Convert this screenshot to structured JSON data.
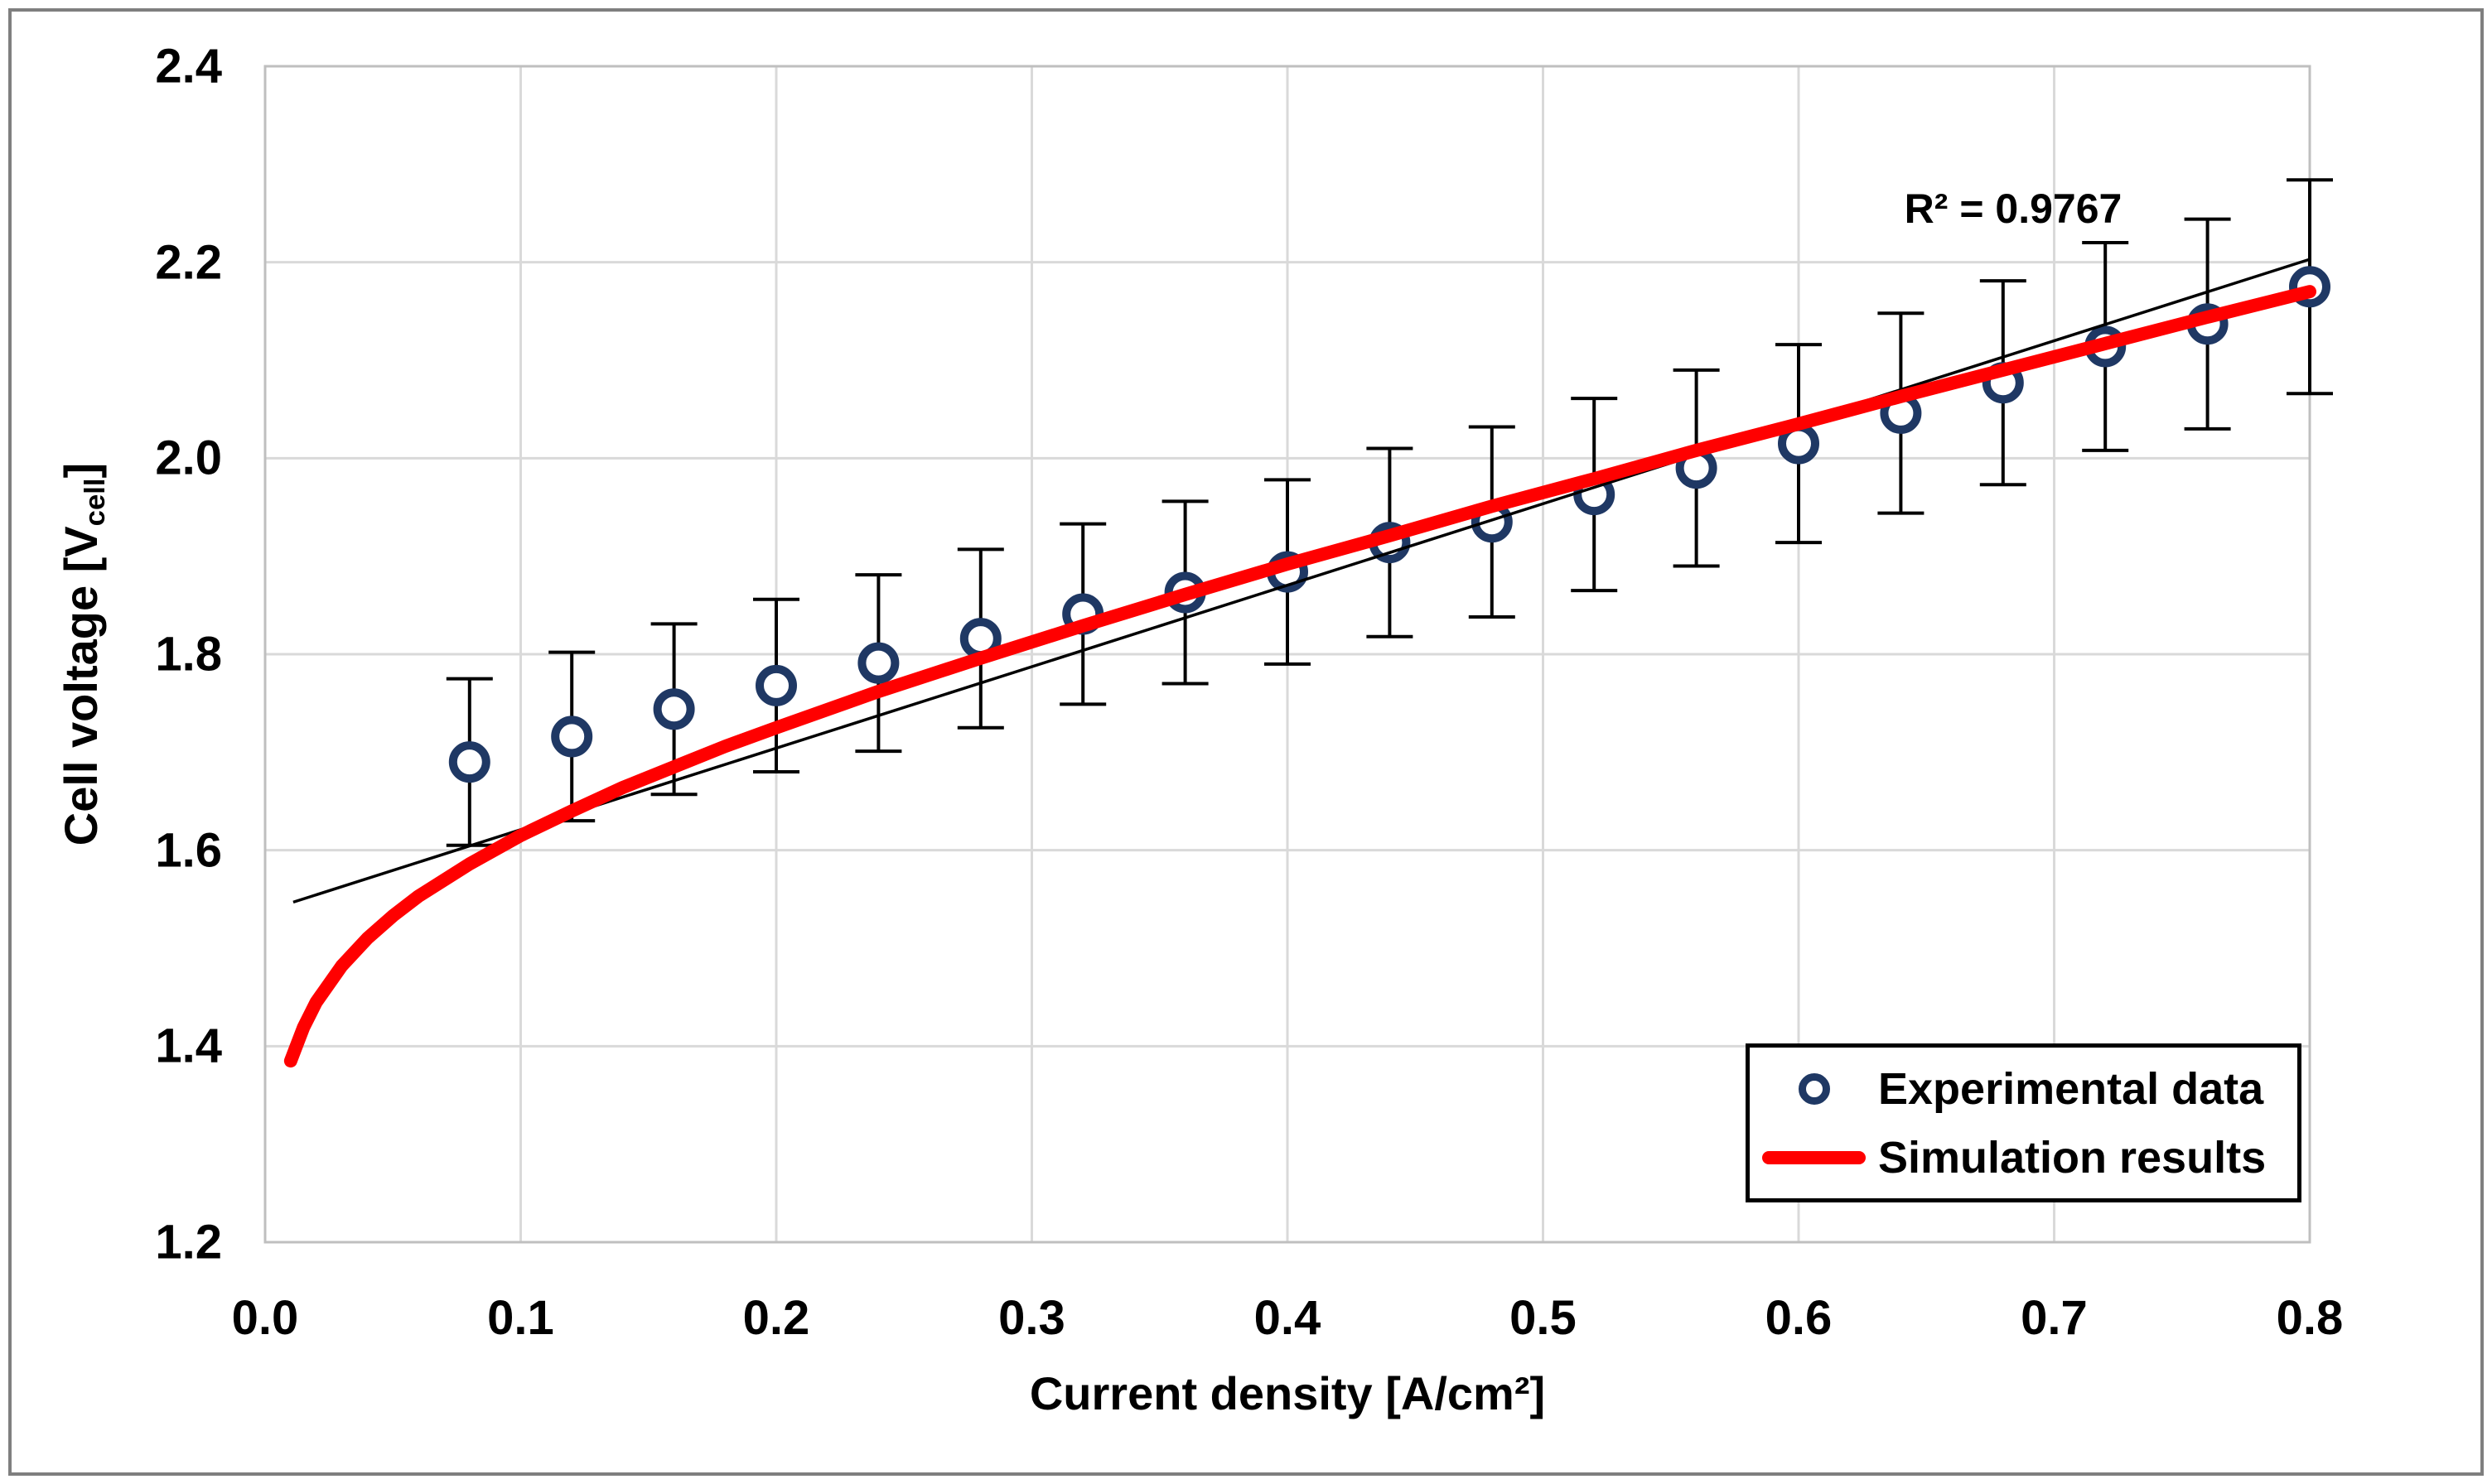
{
  "figure": {
    "background": "#ffffff",
    "frame_color": "#7f7f7f",
    "plot_border_color": "#bfbfbf",
    "gridline_color": "#d9d9d9"
  },
  "chart_data": {
    "type": "scatter",
    "title": "",
    "xlabel": "Current density [A/cm²]",
    "ylabel_parts": {
      "main": "Cell voltage [V",
      "sub": "cell",
      "end": "]"
    },
    "xlim": [
      0.0,
      0.8
    ],
    "ylim": [
      1.2,
      2.4
    ],
    "grid": true,
    "x_tick_values": [
      0.0,
      0.1,
      0.2,
      0.3,
      0.4,
      0.5,
      0.6,
      0.7,
      0.8
    ],
    "x_tick_labels": [
      "0.0",
      "0.1",
      "0.2",
      "0.3",
      "0.4",
      "0.5",
      "0.6",
      "0.7",
      "0.8"
    ],
    "y_tick_values": [
      1.2,
      1.4,
      1.6,
      1.8,
      2.0,
      2.2,
      2.4
    ],
    "y_tick_labels": [
      "1.2",
      "1.4",
      "1.6",
      "1.8",
      "2.0",
      "2.2",
      "2.4"
    ],
    "annotation": "R² = 0.9767",
    "legend": {
      "position": "bottom-right"
    },
    "series": [
      {
        "name": "Experimental data",
        "type": "scatter",
        "marker": "open-circle",
        "color": "#1f3864",
        "x": [
          0.08,
          0.12,
          0.16,
          0.2,
          0.24,
          0.28,
          0.32,
          0.36,
          0.4,
          0.44,
          0.48,
          0.52,
          0.56,
          0.6,
          0.64,
          0.68,
          0.72,
          0.76,
          0.8
        ],
        "y": [
          1.69,
          1.716,
          1.744,
          1.768,
          1.791,
          1.816,
          1.841,
          1.863,
          1.884,
          1.914,
          1.935,
          1.963,
          1.99,
          2.015,
          2.046,
          2.077,
          2.114,
          2.137,
          2.175
        ],
        "y_err": [
          0.085,
          0.086,
          0.087,
          0.088,
          0.09,
          0.091,
          0.092,
          0.093,
          0.094,
          0.096,
          0.097,
          0.098,
          0.1,
          0.101,
          0.102,
          0.104,
          0.106,
          0.107,
          0.109
        ]
      },
      {
        "name": "Simulation results",
        "type": "line",
        "color": "#ff0000",
        "x": [
          0.01,
          0.015,
          0.02,
          0.03,
          0.04,
          0.05,
          0.06,
          0.08,
          0.1,
          0.12,
          0.14,
          0.16,
          0.18,
          0.2,
          0.24,
          0.28,
          0.32,
          0.36,
          0.4,
          0.44,
          0.48,
          0.52,
          0.56,
          0.6,
          0.64,
          0.68,
          0.72,
          0.76,
          0.8
        ],
        "y": [
          1.385,
          1.419,
          1.445,
          1.482,
          1.51,
          1.533,
          1.553,
          1.586,
          1.615,
          1.64,
          1.664,
          1.685,
          1.706,
          1.725,
          1.762,
          1.796,
          1.829,
          1.861,
          1.892,
          1.921,
          1.951,
          1.979,
          2.008,
          2.035,
          2.063,
          2.09,
          2.117,
          2.144,
          2.17
        ]
      },
      {
        "name": "Linear trendline",
        "type": "line",
        "color": "#000000",
        "x": [
          0.011,
          0.8
        ],
        "y": [
          1.547,
          2.203
        ]
      }
    ]
  }
}
